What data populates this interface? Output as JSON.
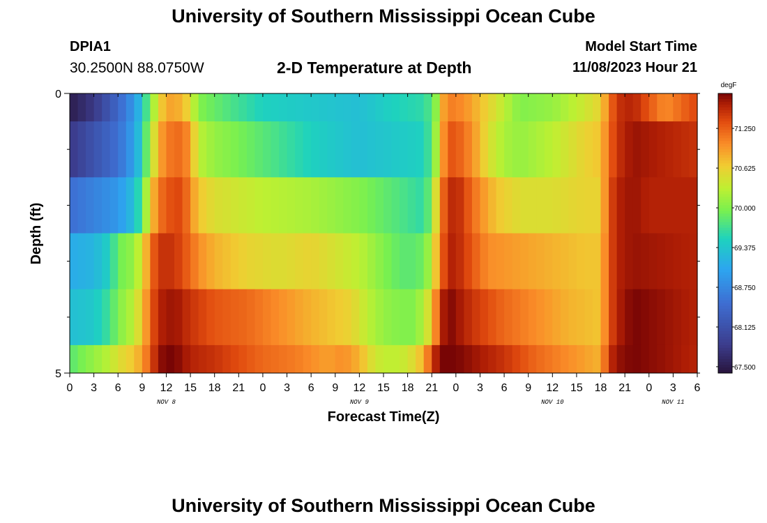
{
  "header": {
    "title": "University of Southern Mississippi Ocean Cube",
    "station": "DPIA1",
    "coords": "30.2500N  88.0750W",
    "plot_title": "2-D Temperature at Depth",
    "model_start_label": "Model Start Time",
    "model_start_value": "11/08/2023 Hour 21"
  },
  "footer": {
    "title": "University of Southern Mississippi Ocean Cube"
  },
  "chart_data": {
    "type": "heatmap",
    "title": "2-D Temperature at Depth",
    "xlabel": "Forecast Time(Z)",
    "ylabel": "Depth (ft)",
    "ylim": [
      0,
      5
    ],
    "x_range_hours": [
      0,
      78
    ],
    "x_tick_labels": [
      "0",
      "3",
      "6",
      "9",
      "12",
      "15",
      "18",
      "21",
      "0",
      "3",
      "6",
      "9",
      "12",
      "15",
      "18",
      "21",
      "0",
      "3",
      "6",
      "9",
      "12",
      "15",
      "18",
      "21",
      "0",
      "3",
      "6"
    ],
    "y_tick_labels": [
      "0",
      "5"
    ],
    "date_labels": [
      {
        "text": "NOV 8",
        "hour": 12
      },
      {
        "text": "NOV 9",
        "hour": 36
      },
      {
        "text": "NOV 10",
        "hour": 60
      },
      {
        "text": "NOV 11",
        "hour": 75
      }
    ],
    "colorbar": {
      "units": "degF",
      "min": 67.4,
      "max": 71.8,
      "ticks": [
        "71.250",
        "70.625",
        "70.000",
        "69.375",
        "68.750",
        "68.125",
        "67.500"
      ]
    },
    "depth_layers": [
      {
        "depth_range": [
          0.0,
          0.5
        ],
        "keypoints": [
          [
            0,
            67.5
          ],
          [
            3,
            67.8
          ],
          [
            6,
            68.4
          ],
          [
            8,
            68.9
          ],
          [
            9,
            69.4
          ],
          [
            10,
            70.0
          ],
          [
            11,
            70.5
          ],
          [
            12,
            70.9
          ],
          [
            14,
            70.8
          ],
          [
            15,
            70.5
          ],
          [
            16,
            70.0
          ],
          [
            19,
            69.8
          ],
          [
            24,
            69.5
          ],
          [
            30,
            69.4
          ],
          [
            36,
            69.3
          ],
          [
            40,
            69.5
          ],
          [
            44,
            69.6
          ],
          [
            45,
            69.8
          ],
          [
            46,
            70.3
          ],
          [
            46.5,
            70.9
          ],
          [
            47,
            71.1
          ],
          [
            49,
            71.0
          ],
          [
            52,
            70.6
          ],
          [
            54,
            70.3
          ],
          [
            56,
            70.0
          ],
          [
            60,
            70.1
          ],
          [
            64,
            70.4
          ],
          [
            66,
            70.6
          ],
          [
            67,
            71.1
          ],
          [
            68,
            71.5
          ],
          [
            70,
            71.6
          ],
          [
            72,
            71.3
          ],
          [
            74,
            71.0
          ],
          [
            76,
            71.2
          ],
          [
            78,
            71.4
          ]
        ]
      },
      {
        "depth_range": [
          0.5,
          1.5
        ],
        "keypoints": [
          [
            0,
            67.8
          ],
          [
            6,
            68.5
          ],
          [
            8,
            69.0
          ],
          [
            9,
            69.5
          ],
          [
            10,
            70.2
          ],
          [
            11,
            70.8
          ],
          [
            12,
            71.1
          ],
          [
            14,
            71.2
          ],
          [
            15,
            70.9
          ],
          [
            16,
            70.3
          ],
          [
            18,
            70.1
          ],
          [
            24,
            69.8
          ],
          [
            30,
            69.5
          ],
          [
            36,
            69.3
          ],
          [
            40,
            69.4
          ],
          [
            44,
            69.5
          ],
          [
            45,
            69.8
          ],
          [
            46,
            70.5
          ],
          [
            46.5,
            71.0
          ],
          [
            47,
            71.3
          ],
          [
            48,
            71.3
          ],
          [
            50,
            71.0
          ],
          [
            52,
            70.5
          ],
          [
            54,
            70.2
          ],
          [
            56,
            70.1
          ],
          [
            60,
            70.3
          ],
          [
            64,
            70.6
          ],
          [
            66,
            70.7
          ],
          [
            67,
            71.2
          ],
          [
            68,
            71.5
          ],
          [
            70,
            71.7
          ],
          [
            74,
            71.6
          ],
          [
            78,
            71.5
          ]
        ]
      },
      {
        "depth_range": [
          1.5,
          2.5
        ],
        "keypoints": [
          [
            0,
            68.5
          ],
          [
            6,
            68.9
          ],
          [
            8,
            69.3
          ],
          [
            9,
            69.8
          ],
          [
            10,
            70.6
          ],
          [
            11,
            71.1
          ],
          [
            12,
            71.3
          ],
          [
            14,
            71.4
          ],
          [
            15,
            71.0
          ],
          [
            16,
            70.7
          ],
          [
            18,
            70.5
          ],
          [
            24,
            70.3
          ],
          [
            30,
            70.2
          ],
          [
            36,
            70.0
          ],
          [
            40,
            69.8
          ],
          [
            44,
            69.6
          ],
          [
            45,
            70.0
          ],
          [
            46,
            71.0
          ],
          [
            47,
            71.5
          ],
          [
            48,
            71.6
          ],
          [
            49,
            71.4
          ],
          [
            51,
            71.0
          ],
          [
            53,
            70.7
          ],
          [
            56,
            70.5
          ],
          [
            60,
            70.5
          ],
          [
            64,
            70.6
          ],
          [
            66,
            70.6
          ],
          [
            67,
            71.3
          ],
          [
            68,
            71.6
          ],
          [
            70,
            71.7
          ],
          [
            72,
            71.6
          ],
          [
            78,
            71.6
          ]
        ]
      },
      {
        "depth_range": [
          2.5,
          3.5
        ],
        "keypoints": [
          [
            0,
            69.1
          ],
          [
            3,
            69.2
          ],
          [
            5,
            69.5
          ],
          [
            6,
            69.9
          ],
          [
            8,
            70.1
          ],
          [
            9,
            70.5
          ],
          [
            10,
            71.1
          ],
          [
            11,
            71.5
          ],
          [
            13,
            71.5
          ],
          [
            15,
            71.2
          ],
          [
            16,
            71.0
          ],
          [
            18,
            70.8
          ],
          [
            22,
            70.6
          ],
          [
            26,
            70.5
          ],
          [
            30,
            70.6
          ],
          [
            36,
            70.3
          ],
          [
            38,
            70.1
          ],
          [
            40,
            69.9
          ],
          [
            42,
            69.8
          ],
          [
            44,
            69.9
          ],
          [
            45,
            70.3
          ],
          [
            46,
            71.1
          ],
          [
            47,
            71.6
          ],
          [
            48,
            71.6
          ],
          [
            50,
            71.3
          ],
          [
            52,
            71.0
          ],
          [
            56,
            70.9
          ],
          [
            60,
            70.8
          ],
          [
            64,
            70.7
          ],
          [
            66,
            70.7
          ],
          [
            67,
            71.3
          ],
          [
            68,
            71.6
          ],
          [
            70,
            71.7
          ],
          [
            78,
            71.6
          ]
        ]
      },
      {
        "depth_range": [
          3.5,
          4.5
        ],
        "keypoints": [
          [
            0,
            69.3
          ],
          [
            3,
            69.4
          ],
          [
            5,
            69.7
          ],
          [
            6,
            70.0
          ],
          [
            8,
            70.3
          ],
          [
            9,
            70.7
          ],
          [
            10,
            71.2
          ],
          [
            11,
            71.6
          ],
          [
            13,
            71.7
          ],
          [
            15,
            71.5
          ],
          [
            18,
            71.3
          ],
          [
            22,
            71.2
          ],
          [
            24,
            71.1
          ],
          [
            26,
            71.0
          ],
          [
            30,
            70.8
          ],
          [
            35,
            70.6
          ],
          [
            37,
            70.3
          ],
          [
            39,
            70.1
          ],
          [
            41,
            70.0
          ],
          [
            43,
            70.0
          ],
          [
            44,
            70.3
          ],
          [
            45,
            70.6
          ],
          [
            46,
            71.5
          ],
          [
            47,
            71.8
          ],
          [
            48,
            71.7
          ],
          [
            50,
            71.5
          ],
          [
            54,
            71.2
          ],
          [
            58,
            71.0
          ],
          [
            62,
            70.8
          ],
          [
            66,
            70.7
          ],
          [
            67,
            71.3
          ],
          [
            68,
            71.6
          ],
          [
            70,
            71.8
          ],
          [
            74,
            71.7
          ],
          [
            78,
            71.6
          ]
        ]
      },
      {
        "depth_range": [
          4.5,
          5.0
        ],
        "keypoints": [
          [
            0,
            69.8
          ],
          [
            3,
            70.1
          ],
          [
            5,
            70.3
          ],
          [
            6,
            70.5
          ],
          [
            7,
            70.6
          ],
          [
            8,
            70.7
          ],
          [
            9,
            70.9
          ],
          [
            10,
            71.3
          ],
          [
            11,
            71.7
          ],
          [
            12,
            71.8
          ],
          [
            13,
            71.8
          ],
          [
            15,
            71.6
          ],
          [
            18,
            71.5
          ],
          [
            22,
            71.3
          ],
          [
            24,
            71.2
          ],
          [
            28,
            71.1
          ],
          [
            30,
            71.0
          ],
          [
            32,
            70.9
          ],
          [
            34,
            71.0
          ],
          [
            36,
            70.8
          ],
          [
            37,
            70.6
          ],
          [
            38,
            70.4
          ],
          [
            40,
            70.3
          ],
          [
            42,
            70.4
          ],
          [
            44,
            70.8
          ],
          [
            45,
            71.4
          ],
          [
            46,
            71.8
          ],
          [
            47,
            71.9
          ],
          [
            48,
            71.8
          ],
          [
            50,
            71.7
          ],
          [
            54,
            71.5
          ],
          [
            58,
            71.2
          ],
          [
            62,
            71.0
          ],
          [
            64,
            70.9
          ],
          [
            66,
            70.8
          ],
          [
            67,
            71.5
          ],
          [
            68,
            71.7
          ],
          [
            70,
            71.8
          ],
          [
            74,
            71.7
          ],
          [
            77.5,
            71.6
          ]
        ]
      }
    ]
  }
}
